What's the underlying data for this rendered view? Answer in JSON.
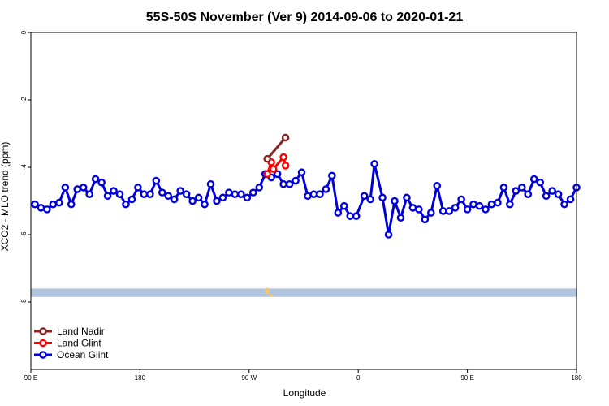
{
  "chart_data": {
    "type": "line",
    "title": "55S-50S November (Ver 9)   2014-09-06 to 2020-01-21",
    "xlabel": "Longitude",
    "ylabel": "XCO2 - MLO trend (ppm)",
    "xlim": [
      -90,
      180
    ],
    "ylim": [
      -10,
      0
    ],
    "x_ticks": [
      {
        "value": -90,
        "label": "90 E"
      },
      {
        "value": -36,
        "label": "180"
      },
      {
        "value": 18,
        "label": "90 W"
      },
      {
        "value": 72,
        "label": "0"
      },
      {
        "value": 126,
        "label": "90 E"
      },
      {
        "value": 180,
        "label": "180"
      }
    ],
    "y_ticks": [
      0,
      -2,
      -4,
      -6,
      -8
    ],
    "grid": false,
    "legend_position": "bottom-left",
    "land_strip": {
      "y_range": [
        -7.85,
        -7.6
      ],
      "color": "#b0c4de",
      "land_color": "#f5c56b"
    },
    "series": [
      {
        "name": "Land Nadir",
        "color": "#8b2323",
        "points": [
          [
            27,
            -3.75
          ],
          [
            36,
            -3.12
          ]
        ]
      },
      {
        "name": "Land Glint",
        "color": "#ff0000",
        "points": [
          [
            27,
            -4.2
          ],
          [
            29,
            -3.85
          ],
          [
            30,
            -4.05
          ],
          [
            35,
            -3.7
          ],
          [
            36,
            -3.95
          ]
        ]
      },
      {
        "name": "Ocean Glint",
        "color": "#0000dd",
        "points": [
          [
            -88,
            -5.1
          ],
          [
            -85,
            -5.2
          ],
          [
            -82,
            -5.25
          ],
          [
            -79,
            -5.1
          ],
          [
            -76,
            -5.05
          ],
          [
            -73,
            -4.6
          ],
          [
            -70,
            -5.1
          ],
          [
            -67,
            -4.65
          ],
          [
            -64,
            -4.6
          ],
          [
            -61,
            -4.8
          ],
          [
            -58,
            -4.35
          ],
          [
            -55,
            -4.45
          ],
          [
            -52,
            -4.85
          ],
          [
            -49,
            -4.7
          ],
          [
            -46,
            -4.8
          ],
          [
            -43,
            -5.1
          ],
          [
            -40,
            -4.95
          ],
          [
            -37,
            -4.6
          ],
          [
            -34,
            -4.8
          ],
          [
            -31,
            -4.8
          ],
          [
            -28,
            -4.4
          ],
          [
            -25,
            -4.75
          ],
          [
            -22,
            -4.85
          ],
          [
            -19,
            -4.95
          ],
          [
            -16,
            -4.7
          ],
          [
            -13,
            -4.8
          ],
          [
            -10,
            -5.0
          ],
          [
            -7,
            -4.9
          ],
          [
            -4,
            -5.1
          ],
          [
            -1,
            -4.5
          ],
          [
            2,
            -5.0
          ],
          [
            5,
            -4.9
          ],
          [
            8,
            -4.75
          ],
          [
            11,
            -4.8
          ],
          [
            14,
            -4.8
          ],
          [
            17,
            -4.9
          ],
          [
            20,
            -4.75
          ],
          [
            23,
            -4.6
          ],
          [
            26,
            -4.2
          ],
          [
            29,
            -4.3
          ],
          [
            32,
            -4.2
          ],
          [
            35,
            -4.5
          ],
          [
            38,
            -4.5
          ],
          [
            41,
            -4.4
          ],
          [
            44,
            -4.15
          ],
          [
            47,
            -4.85
          ],
          [
            50,
            -4.8
          ],
          [
            53,
            -4.8
          ],
          [
            56,
            -4.65
          ],
          [
            59,
            -4.25
          ],
          [
            62,
            -5.35
          ],
          [
            65,
            -5.15
          ],
          [
            68,
            -5.45
          ],
          [
            71,
            -5.45
          ],
          [
            75,
            -4.85
          ],
          [
            78,
            -4.95
          ],
          [
            80,
            -3.9
          ],
          [
            84,
            -4.9
          ],
          [
            87,
            -6.0
          ],
          [
            90,
            -5.0
          ],
          [
            93,
            -5.5
          ],
          [
            96,
            -4.9
          ],
          [
            99,
            -5.2
          ],
          [
            102,
            -5.25
          ],
          [
            105,
            -5.55
          ],
          [
            108,
            -5.35
          ],
          [
            111,
            -4.55
          ],
          [
            114,
            -5.3
          ],
          [
            117,
            -5.3
          ],
          [
            120,
            -5.2
          ],
          [
            123,
            -4.95
          ],
          [
            126,
            -5.25
          ],
          [
            129,
            -5.1
          ],
          [
            132,
            -5.15
          ],
          [
            135,
            -5.25
          ],
          [
            138,
            -5.1
          ],
          [
            141,
            -5.05
          ],
          [
            144,
            -4.6
          ],
          [
            147,
            -5.1
          ],
          [
            150,
            -4.7
          ],
          [
            153,
            -4.6
          ],
          [
            156,
            -4.8
          ],
          [
            159,
            -4.35
          ],
          [
            162,
            -4.45
          ],
          [
            165,
            -4.85
          ],
          [
            168,
            -4.7
          ],
          [
            171,
            -4.8
          ],
          [
            174,
            -5.1
          ],
          [
            177,
            -4.95
          ],
          [
            180,
            -4.6
          ]
        ]
      }
    ]
  }
}
